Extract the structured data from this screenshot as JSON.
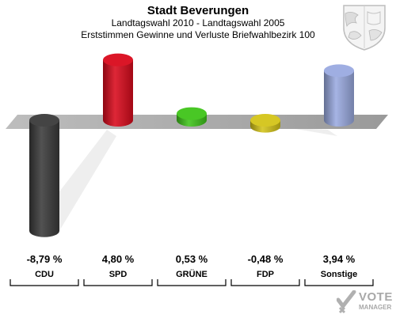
{
  "title": "Stadt Beverungen",
  "subtitle": "Landtagswahl 2010 - Landtagswahl 2005",
  "subtitle2": "Erststimmen Gewinne und Verluste Briefwahlbezirk 100",
  "logo": {
    "vote": "VOTE",
    "manager": "MANAGER"
  },
  "crest_icon": "coat-of-arms-icon",
  "chart_data": {
    "type": "bar",
    "title": "Stadt Beverungen",
    "subtitle": "Landtagswahl 2010 - Landtagswahl 2005",
    "categories": [
      "CDU",
      "SPD",
      "GRÜNE",
      "FDP",
      "Sonstige"
    ],
    "values": [
      -8.79,
      4.8,
      0.53,
      -0.48,
      3.94
    ],
    "value_labels": [
      "-8,79 %",
      "4,80 %",
      "0,53 %",
      "-0,48 %",
      "3,94 %"
    ],
    "colors": [
      "#3a3a3a",
      "#d90a1c",
      "#3fc41a",
      "#d4c418",
      "#9aaae0"
    ],
    "ylim": [
      -9,
      5
    ],
    "xlabel": "",
    "ylabel": "",
    "grid": false,
    "legend": "none"
  }
}
